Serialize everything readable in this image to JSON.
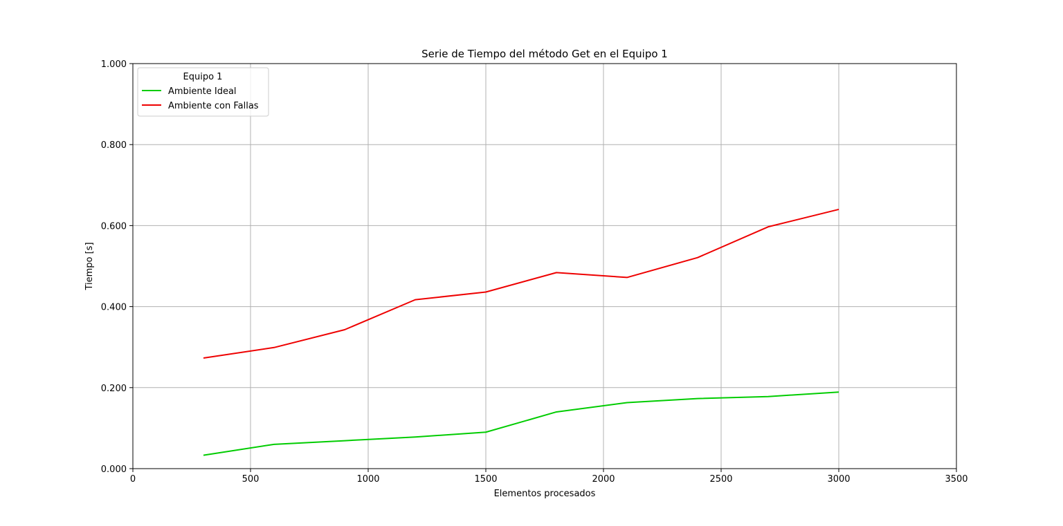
{
  "chart_data": {
    "type": "line",
    "title": "Serie de Tiempo del método Get en el Equipo 1",
    "xlabel": "Elementos procesados",
    "ylabel": "Tiempo [s]",
    "xlim": [
      0,
      3500
    ],
    "ylim": [
      0,
      1.0
    ],
    "x_ticks": [
      0,
      500,
      1000,
      1500,
      2000,
      2500,
      3000,
      3500
    ],
    "x_tick_labels": [
      "0",
      "500",
      "1000",
      "1500",
      "2000",
      "2500",
      "3000",
      "3500"
    ],
    "y_ticks": [
      0,
      0.2,
      0.4,
      0.6,
      0.8,
      1.0
    ],
    "y_tick_labels": [
      "0.000",
      "0.200",
      "0.400",
      "0.600",
      "0.800",
      "1.000"
    ],
    "grid": true,
    "legend": {
      "title": "Equipo 1",
      "placement": "upper-left"
    },
    "x": [
      300,
      600,
      900,
      1200,
      1500,
      1800,
      2100,
      2400,
      2700,
      3000
    ],
    "series": [
      {
        "name": "Ambiente Ideal",
        "color": "#00cc00",
        "values": [
          0.033,
          0.06,
          0.069,
          0.078,
          0.09,
          0.14,
          0.163,
          0.173,
          0.178,
          0.189
        ]
      },
      {
        "name": "Ambiente con Fallas",
        "color": "#ee0000",
        "values": [
          0.273,
          0.299,
          0.343,
          0.417,
          0.436,
          0.484,
          0.472,
          0.521,
          0.597,
          0.64
        ]
      }
    ]
  }
}
